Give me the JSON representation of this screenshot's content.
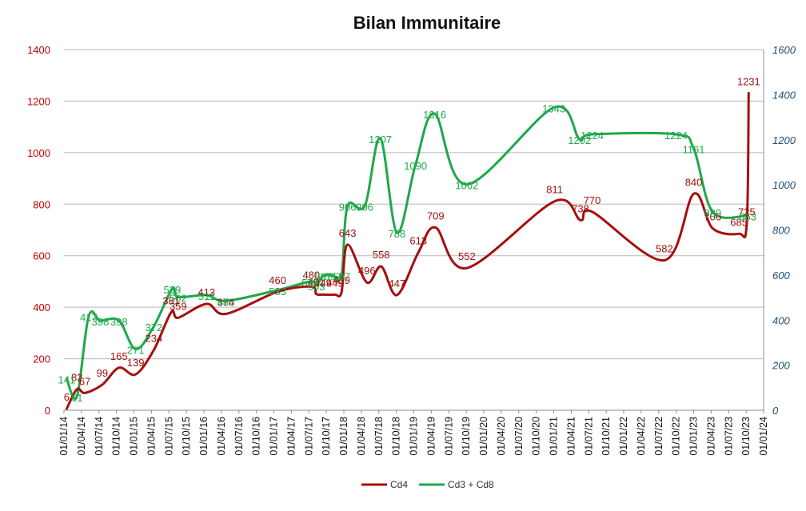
{
  "chart_data": {
    "type": "line",
    "title": "Bilan Immunitaire",
    "xlabel": "",
    "ylabel": "",
    "grid": true,
    "legend_position": "bottom",
    "x_start": "2014-01-01",
    "x_end": "2024-01-01",
    "x_ticks": [
      "01/01/14",
      "01/04/14",
      "01/07/14",
      "01/10/14",
      "01/01/15",
      "01/04/15",
      "01/07/15",
      "01/10/15",
      "01/01/16",
      "01/04/16",
      "01/07/16",
      "01/10/16",
      "01/01/17",
      "01/04/17",
      "01/07/17",
      "01/10/17",
      "01/01/18",
      "01/04/18",
      "01/07/18",
      "01/10/18",
      "01/01/19",
      "01/04/19",
      "01/07/19",
      "01/10/19",
      "01/01/20",
      "01/04/20",
      "01/07/20",
      "01/10/20",
      "01/01/21",
      "01/04/21",
      "01/07/21",
      "01/10/21",
      "01/01/22",
      "01/04/22",
      "01/07/22",
      "01/10/22",
      "01/01/23",
      "01/04/23",
      "01/07/23",
      "01/10/23",
      "01/01/24"
    ],
    "y_left": {
      "min": 0,
      "max": 1400,
      "step": 200,
      "ticks": [
        "0",
        "200",
        "400",
        "600",
        "800",
        "1000",
        "1200",
        "1400"
      ],
      "color": "#c00000"
    },
    "y_right": {
      "min": 0,
      "max": 1600,
      "step": 200,
      "ticks": [
        "0",
        "200",
        "400",
        "600",
        "800",
        "1000",
        "1200",
        "1400",
        "1600"
      ],
      "color": "#1f4e79"
    },
    "series": [
      {
        "name": "Cd4",
        "color": "#a50f0f",
        "axis": "left",
        "points": [
          {
            "x": "2014-01-15",
            "y": 6,
            "label": "6"
          },
          {
            "x": "2014-03-10",
            "y": 82,
            "label": "82"
          },
          {
            "x": "2014-04-20",
            "y": 67,
            "label": "67"
          },
          {
            "x": "2014-07-20",
            "y": 99,
            "label": "99"
          },
          {
            "x": "2014-10-15",
            "y": 165,
            "label": "165"
          },
          {
            "x": "2015-01-10",
            "y": 139,
            "label": "139"
          },
          {
            "x": "2015-04-15",
            "y": 234,
            "label": "234"
          },
          {
            "x": "2015-07-15",
            "y": 381,
            "label": "381"
          },
          {
            "x": "2015-08-20",
            "y": 359,
            "label": "359"
          },
          {
            "x": "2016-01-15",
            "y": 413,
            "label": "413"
          },
          {
            "x": "2016-04-25",
            "y": 374,
            "label": "374"
          },
          {
            "x": "2017-01-20",
            "y": 460,
            "label": "460"
          },
          {
            "x": "2017-07-15",
            "y": 480,
            "label": "480"
          },
          {
            "x": "2017-08-10",
            "y": 451,
            "label": "451"
          },
          {
            "x": "2017-09-15",
            "y": 449,
            "label": "449"
          },
          {
            "x": "2017-11-15",
            "y": 449,
            "label": "449"
          },
          {
            "x": "2017-12-20",
            "y": 459,
            "label": "459"
          },
          {
            "x": "2018-01-20",
            "y": 643,
            "label": "643"
          },
          {
            "x": "2018-05-01",
            "y": 496,
            "label": "496"
          },
          {
            "x": "2018-07-15",
            "y": 558,
            "label": "558"
          },
          {
            "x": "2018-10-05",
            "y": 447,
            "label": "447"
          },
          {
            "x": "2019-01-25",
            "y": 613,
            "label": "613"
          },
          {
            "x": "2019-04-25",
            "y": 709,
            "label": "709"
          },
          {
            "x": "2019-10-05",
            "y": 552,
            "label": "552"
          },
          {
            "x": "2021-01-05",
            "y": 811,
            "label": "811"
          },
          {
            "x": "2021-05-20",
            "y": 738,
            "label": "738"
          },
          {
            "x": "2021-07-20",
            "y": 770,
            "label": "770"
          },
          {
            "x": "2022-08-01",
            "y": 582,
            "label": "582"
          },
          {
            "x": "2023-01-01",
            "y": 840,
            "label": "840"
          },
          {
            "x": "2023-04-10",
            "y": 706,
            "label": "706"
          },
          {
            "x": "2023-08-25",
            "y": 685,
            "label": "685"
          },
          {
            "x": "2023-10-05",
            "y": 725,
            "label": "725"
          },
          {
            "x": "2023-10-15",
            "y": 1231,
            "label": "1231"
          }
        ]
      },
      {
        "name": "Cd3 + Cd8",
        "color": "#1ea84b",
        "axis": "right",
        "points": [
          {
            "x": "2014-01-15",
            "y": 141,
            "label": "141"
          },
          {
            "x": "2014-03-10",
            "y": 61,
            "label": "61"
          },
          {
            "x": "2014-05-10",
            "y": 417,
            "label": "417"
          },
          {
            "x": "2014-07-10",
            "y": 398,
            "label": "398"
          },
          {
            "x": "2014-10-15",
            "y": 398,
            "label": "398"
          },
          {
            "x": "2015-01-10",
            "y": 271,
            "label": "271"
          },
          {
            "x": "2015-04-15",
            "y": 372,
            "label": "372"
          },
          {
            "x": "2015-07-20",
            "y": 539,
            "label": "539"
          },
          {
            "x": "2015-08-20",
            "y": 502,
            "label": "502"
          },
          {
            "x": "2016-01-15",
            "y": 511,
            "label": "511"
          },
          {
            "x": "2016-04-25",
            "y": 485,
            "label": "485"
          },
          {
            "x": "2017-01-20",
            "y": 533,
            "label": "533"
          },
          {
            "x": "2017-07-10",
            "y": 571,
            "label": "571"
          },
          {
            "x": "2017-08-10",
            "y": 553,
            "label": "553"
          },
          {
            "x": "2017-09-15",
            "y": 597,
            "label": "597"
          },
          {
            "x": "2017-11-05",
            "y": 597,
            "label": "597"
          },
          {
            "x": "2017-12-20",
            "y": 597,
            "label": "597"
          },
          {
            "x": "2018-01-20",
            "y": 906,
            "label": "906"
          },
          {
            "x": "2018-04-20",
            "y": 906,
            "label": "906"
          },
          {
            "x": "2018-07-10",
            "y": 1207,
            "label": "1207"
          },
          {
            "x": "2018-10-05",
            "y": 788,
            "label": "788"
          },
          {
            "x": "2019-01-10",
            "y": 1090,
            "label": "1090"
          },
          {
            "x": "2019-04-20",
            "y": 1316,
            "label": "1316"
          },
          {
            "x": "2019-10-05",
            "y": 1002,
            "label": "1002"
          },
          {
            "x": "2021-01-01",
            "y": 1343,
            "label": "1343"
          },
          {
            "x": "2021-05-15",
            "y": 1202,
            "label": "1202"
          },
          {
            "x": "2021-07-20",
            "y": 1224,
            "label": "1224"
          },
          {
            "x": "2022-10-01",
            "y": 1224,
            "label": "1224"
          },
          {
            "x": "2023-01-01",
            "y": 1161,
            "label": "1161"
          },
          {
            "x": "2023-04-10",
            "y": 880,
            "label": "880"
          },
          {
            "x": "2023-10-10",
            "y": 863,
            "label": "863"
          }
        ]
      }
    ]
  }
}
